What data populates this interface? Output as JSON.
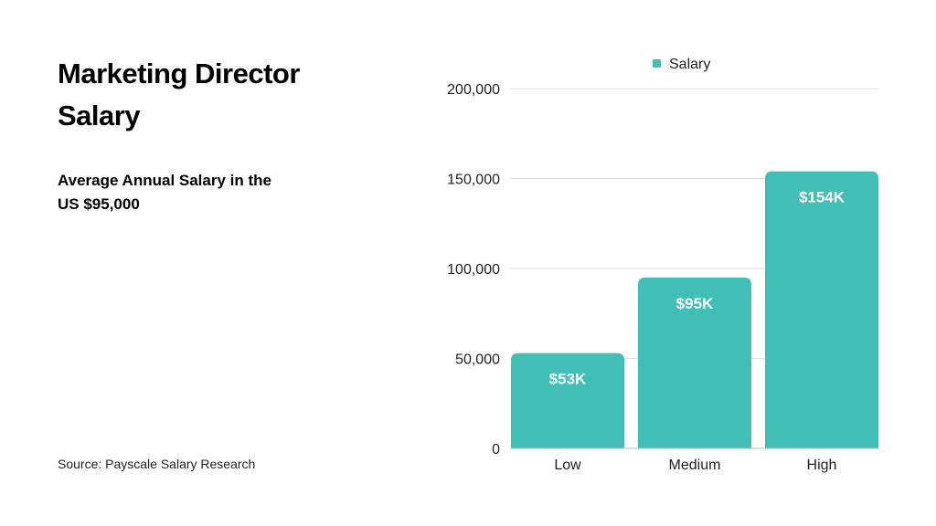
{
  "title": "Marketing Director Salary",
  "subtitle": "Average Annual Salary in the US $95,000",
  "source": "Source: Payscale Salary Research",
  "chart_data": {
    "type": "bar",
    "categories": [
      "Low",
      "Medium",
      "High"
    ],
    "series": [
      {
        "name": "Salary",
        "values": [
          53000,
          95000,
          154000
        ],
        "labels": [
          "$53K",
          "$95K",
          "$154K"
        ],
        "color": "#41beb5"
      }
    ],
    "ylim": [
      0,
      200000
    ],
    "yticks": [
      0,
      50000,
      100000,
      150000,
      200000
    ],
    "ytick_labels": [
      "0",
      "50,000",
      "100,000",
      "150,000",
      "200,000"
    ],
    "grid": true,
    "legend": "top-center"
  }
}
